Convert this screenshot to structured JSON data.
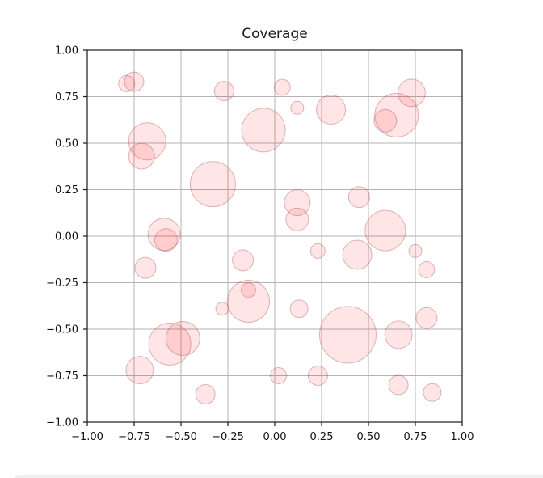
{
  "page": {
    "bottom_strip_color": "#f0f0f0",
    "background_color": "#ffffff"
  },
  "chart_data": {
    "type": "scatter",
    "title": "Coverage",
    "xlabel": "",
    "ylabel": "",
    "xlim": [
      -1.0,
      1.0
    ],
    "ylim": [
      -1.0,
      1.0
    ],
    "grid": true,
    "legend": null,
    "xticks": [
      -1.0,
      -0.75,
      -0.5,
      -0.25,
      0.0,
      0.25,
      0.5,
      0.75,
      1.0
    ],
    "xtick_labels": [
      "−1.00",
      "−0.75",
      "−0.50",
      "−0.25",
      "0.00",
      "0.25",
      "0.50",
      "0.75",
      "1.00"
    ],
    "yticks": [
      1.0,
      0.75,
      0.5,
      0.25,
      0.0,
      -0.25,
      -0.5,
      -0.75,
      -1.0
    ],
    "ytick_labels": [
      "1.00",
      "0.75",
      "0.50",
      "0.25",
      "0.00",
      "−0.25",
      "−0.50",
      "−0.75",
      "−1.00"
    ],
    "colors": {
      "marker_fill": "rgba(255,0,0,0.10)",
      "marker_edge": "rgba(165,70,78,0.38)",
      "grid": "#b3b3b3",
      "spine": "#1a1a1a",
      "text": "#111111"
    },
    "points": [
      {
        "x": -0.79,
        "y": 0.82,
        "r": 10
      },
      {
        "x": -0.75,
        "y": 0.83,
        "r": 12
      },
      {
        "x": -0.68,
        "y": 0.51,
        "r": 23
      },
      {
        "x": -0.71,
        "y": 0.43,
        "r": 16
      },
      {
        "x": -0.27,
        "y": 0.78,
        "r": 12
      },
      {
        "x": 0.04,
        "y": 0.8,
        "r": 10
      },
      {
        "x": 0.12,
        "y": 0.69,
        "r": 8
      },
      {
        "x": 0.3,
        "y": 0.68,
        "r": 18
      },
      {
        "x": -0.06,
        "y": 0.57,
        "r": 27
      },
      {
        "x": 0.73,
        "y": 0.77,
        "r": 17
      },
      {
        "x": 0.65,
        "y": 0.65,
        "r": 27
      },
      {
        "x": 0.59,
        "y": 0.62,
        "r": 14
      },
      {
        "x": -0.33,
        "y": 0.28,
        "r": 28
      },
      {
        "x": 0.12,
        "y": 0.18,
        "r": 16
      },
      {
        "x": 0.12,
        "y": 0.09,
        "r": 14
      },
      {
        "x": 0.45,
        "y": 0.21,
        "r": 13
      },
      {
        "x": 0.59,
        "y": 0.03,
        "r": 25
      },
      {
        "x": -0.59,
        "y": 0.01,
        "r": 20
      },
      {
        "x": -0.58,
        "y": -0.02,
        "r": 14
      },
      {
        "x": -0.69,
        "y": -0.17,
        "r": 13
      },
      {
        "x": 0.23,
        "y": -0.08,
        "r": 9
      },
      {
        "x": -0.17,
        "y": -0.13,
        "r": 13
      },
      {
        "x": 0.44,
        "y": -0.1,
        "r": 18
      },
      {
        "x": 0.75,
        "y": -0.08,
        "r": 8
      },
      {
        "x": 0.81,
        "y": -0.18,
        "r": 10
      },
      {
        "x": -0.14,
        "y": -0.35,
        "r": 26
      },
      {
        "x": -0.14,
        "y": -0.29,
        "r": 9
      },
      {
        "x": -0.28,
        "y": -0.39,
        "r": 8
      },
      {
        "x": 0.13,
        "y": -0.39,
        "r": 11
      },
      {
        "x": 0.39,
        "y": -0.53,
        "r": 35
      },
      {
        "x": 0.66,
        "y": -0.53,
        "r": 17
      },
      {
        "x": 0.81,
        "y": -0.44,
        "r": 13
      },
      {
        "x": -0.56,
        "y": -0.58,
        "r": 26
      },
      {
        "x": -0.49,
        "y": -0.55,
        "r": 21
      },
      {
        "x": -0.72,
        "y": -0.72,
        "r": 17
      },
      {
        "x": -0.37,
        "y": -0.85,
        "r": 12
      },
      {
        "x": 0.02,
        "y": -0.75,
        "r": 10
      },
      {
        "x": 0.23,
        "y": -0.75,
        "r": 12
      },
      {
        "x": 0.66,
        "y": -0.8,
        "r": 12
      },
      {
        "x": 0.84,
        "y": -0.84,
        "r": 11
      }
    ]
  }
}
